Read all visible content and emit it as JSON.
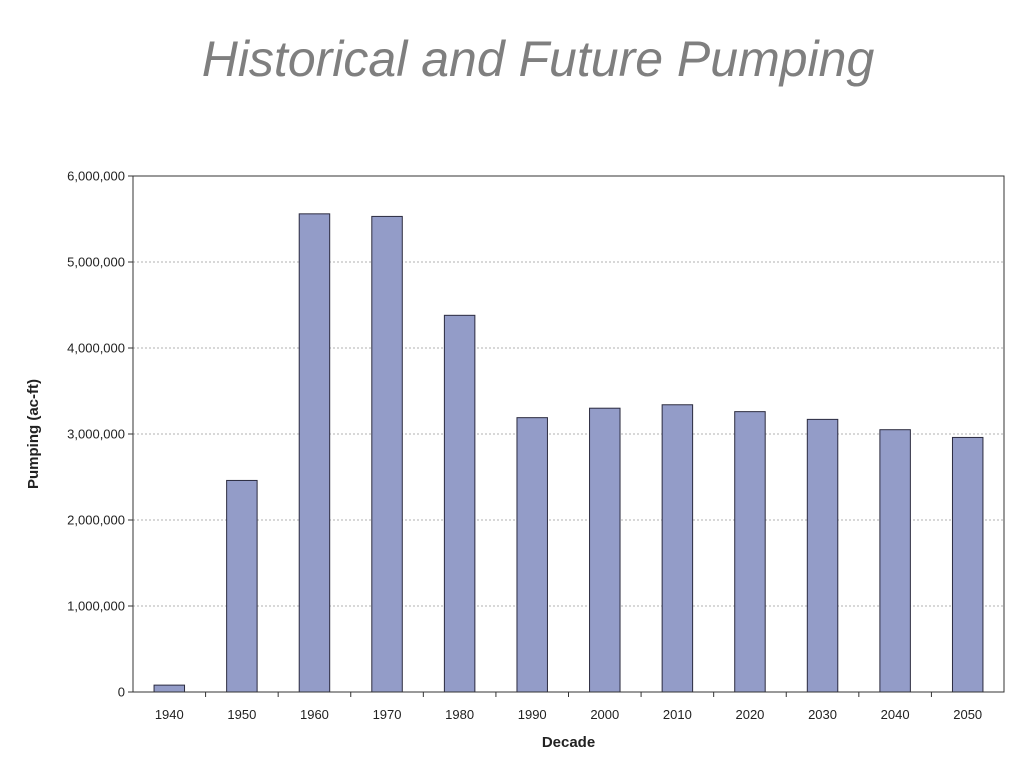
{
  "slide": {
    "title": "Historical and Future Pumping"
  },
  "colors": {
    "title": "#7f7f7f",
    "bar_fill": "#939cc8",
    "bar_stroke": "#2b2b3f",
    "gridline": "#b0b0b0",
    "axis": "#333333"
  },
  "chart_data": {
    "type": "bar",
    "title": "",
    "xlabel": "Decade",
    "ylabel": "Pumping (ac-ft)",
    "categories": [
      "1940",
      "1950",
      "1960",
      "1970",
      "1980",
      "1990",
      "2000",
      "2010",
      "2020",
      "2030",
      "2040",
      "2050"
    ],
    "values": [
      80000,
      2460000,
      5560000,
      5530000,
      4380000,
      3190000,
      3300000,
      3340000,
      3260000,
      3170000,
      3050000,
      2960000
    ],
    "ylim": [
      0,
      6000000
    ],
    "yticks": [
      0,
      1000000,
      2000000,
      3000000,
      4000000,
      5000000,
      6000000
    ],
    "ytick_labels": [
      "0",
      "1,000,000",
      "2,000,000",
      "3,000,000",
      "4,000,000",
      "5,000,000",
      "6,000,000"
    ],
    "grid": "horizontal dotted",
    "legend": "none"
  }
}
